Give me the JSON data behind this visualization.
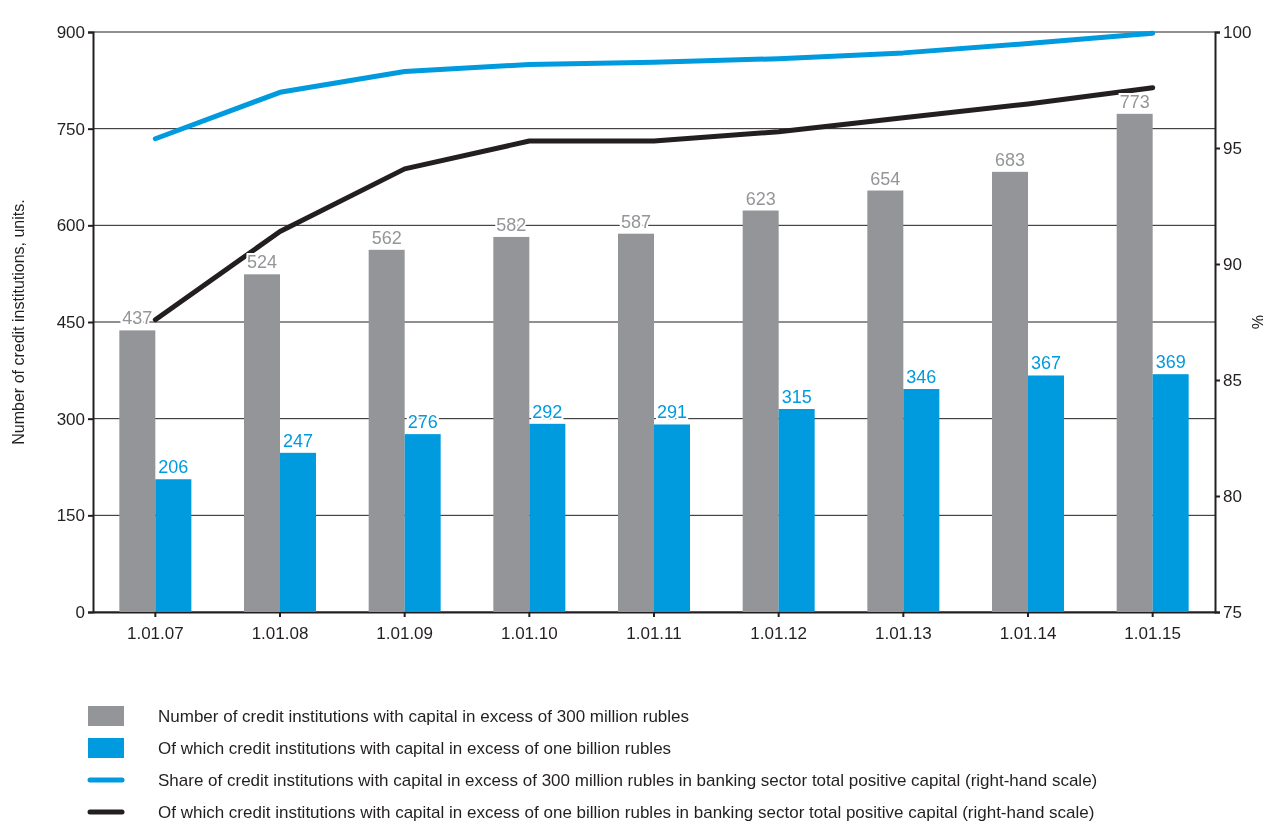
{
  "chart_data": {
    "type": "bar",
    "ylabel": "Number of credit institutions, units.",
    "y2label": "%",
    "categories": [
      "1.01.07",
      "1.01.08",
      "1.01.09",
      "1.01.10",
      "1.01.11",
      "1.01.12",
      "1.01.13",
      "1.01.14",
      "1.01.15"
    ],
    "series": [
      {
        "name": "Number of credit institutions with capital in excess of 300 million rubles",
        "color": "#939598",
        "values": [
          437,
          524,
          562,
          582,
          587,
          623,
          654,
          683,
          773
        ],
        "value_labels": [
          "437",
          "524",
          "562",
          "582",
          "587",
          "623",
          "654",
          "683",
          "773"
        ]
      },
      {
        "name": "Of which credit institutions with capital in excess of one billion rubles",
        "color": "#009ade",
        "values": [
          206,
          247,
          276,
          292,
          291,
          315,
          346,
          367,
          369
        ],
        "value_labels": [
          "206",
          "247",
          "276",
          "292",
          "291",
          "315",
          "346",
          "367",
          "369"
        ]
      },
      {
        "name": "Share of credit institutions with capital in excess of 300 million rubles in banking sector total positive capital (right-hand scale)",
        "type": "line",
        "axis": "y2",
        "color": "#009ade",
        "values": [
          95.4,
          97.4,
          98.3,
          98.6,
          98.7,
          98.85,
          99.1,
          99.5,
          99.95
        ]
      },
      {
        "name": "Of which credit institutions with capital in excess of one billion rubles in banking sector total positive capital (right-hand scale)",
        "type": "line",
        "axis": "y2",
        "color": "#231f20",
        "values": [
          87.6,
          91.4,
          94.1,
          95.3,
          95.3,
          95.7,
          96.3,
          96.9,
          97.6
        ]
      }
    ],
    "ylim": [
      0,
      900
    ],
    "yticks": [
      0,
      150,
      300,
      450,
      600,
      750,
      900
    ],
    "y2lim": [
      75,
      100
    ],
    "y2ticks": [
      75,
      80,
      85,
      90,
      95,
      100
    ],
    "grid": "y",
    "legend": "bottom",
    "marker": "none",
    "line_style": "solid"
  }
}
